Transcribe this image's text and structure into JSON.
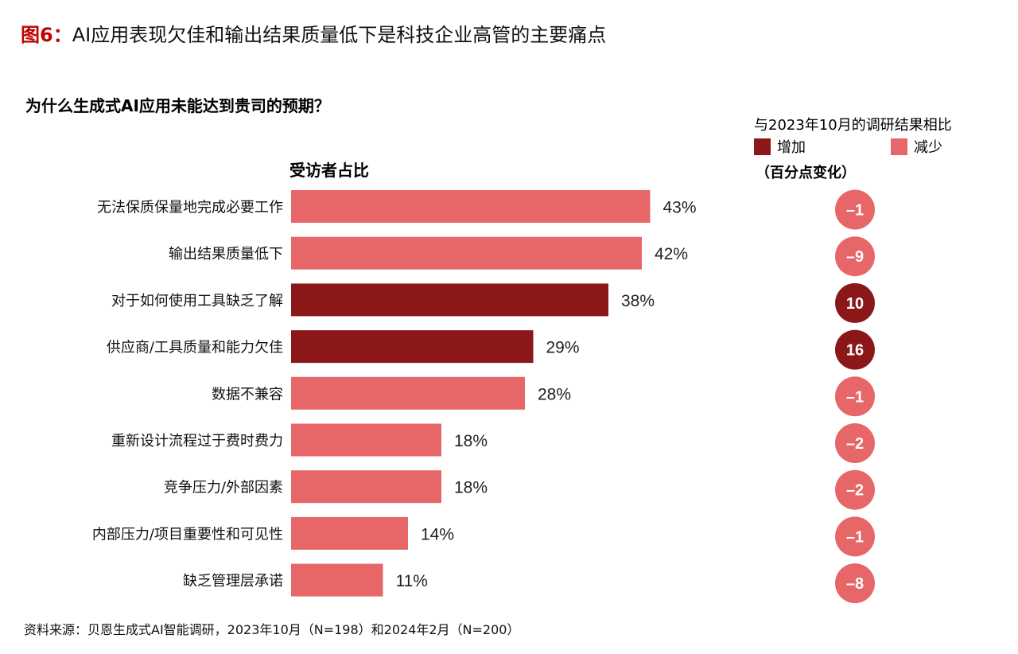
{
  "figure": {
    "label": "图6：",
    "title": "AI应用表现欠佳和输出结果质量低下是科技企业高管的主要痛点"
  },
  "question": "为什么生成式AI应用未能达到贵司的预期？",
  "comparison": {
    "title": "与2023年10月的调研结果相比",
    "legend": [
      {
        "label": "增加",
        "color": "#8b1719"
      },
      {
        "label": "减少",
        "color": "#e76668"
      }
    ],
    "unit": "（百分点变化）"
  },
  "source": "资料来源：贝恩生成式AI智能调研，2023年10月（N=198）和2024年2月（N=200）",
  "chart_data": {
    "type": "bar",
    "orientation": "horizontal",
    "value_header": "受访者占比",
    "categories": [
      "无法保质保量地完成必要工作",
      "输出结果质量低下",
      "对于如何使用工具缺乏了解",
      "供应商/工具质量和能力欠佳",
      "数据不兼容",
      "重新设计流程过于费时费力",
      "竞争压力/外部因素",
      "内部压力/项目重要性和可见性",
      "缺乏管理层承诺"
    ],
    "values": [
      43,
      42,
      38,
      29,
      28,
      18,
      18,
      14,
      11
    ],
    "value_labels": [
      "43%",
      "42%",
      "38%",
      "29%",
      "28%",
      "18%",
      "18%",
      "14%",
      "11%"
    ],
    "changes": [
      -1,
      -9,
      10,
      16,
      -1,
      -2,
      -2,
      -1,
      -8
    ],
    "change_labels": [
      "–1",
      "–9",
      "10",
      "16",
      "–1",
      "–2",
      "–2",
      "–1",
      "–8"
    ],
    "colors": {
      "increase": "#8b1719",
      "decrease": "#e76668"
    }
  }
}
